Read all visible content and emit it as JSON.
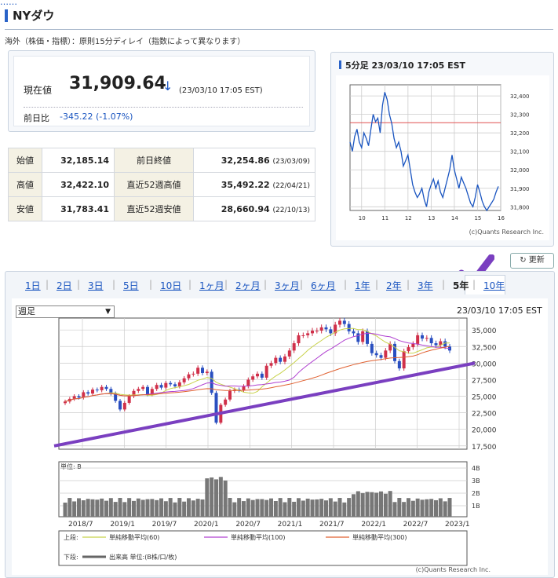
{
  "page": {
    "title": "NYダウ",
    "notice": "海外（株価・指標）：原則15分ディレイ（指数によって異なります）"
  },
  "quote": {
    "now_label": "現在値",
    "price": "31,909.64",
    "direction_icon": "down-arrow",
    "arrow": "↓",
    "timestamp": "(23/03/10 17:05 EST)",
    "prev_label": "前日比",
    "change": "-345.22 (-1.07%)"
  },
  "stats": {
    "rows": [
      {
        "l1": "始値",
        "v1": "32,185.14",
        "l2": "前日終値",
        "v2": "32,254.86",
        "d2": "(23/03/09)"
      },
      {
        "l1": "高値",
        "v1": "32,422.10",
        "l2": "直近52週高値",
        "v2": "35,492.22",
        "d2": "(22/04/21)"
      },
      {
        "l1": "安値",
        "v1": "31,783.41",
        "l2": "直近52週安値",
        "v2": "28,660.94",
        "d2": "(22/10/13)"
      }
    ]
  },
  "mini_chart": {
    "title": "5分足 23/03/10 17:05 EST",
    "credit": "(c)Quants Research Inc.",
    "ref_line_value": 32254.86,
    "ref_color": "#e05050",
    "line_color": "#1a55c0"
  },
  "toolbar": {
    "refresh_label": "更新",
    "refresh_icon": "refresh-icon"
  },
  "tabs": {
    "items": [
      "1日",
      "2日",
      "3日",
      "5日",
      "10日",
      "1ヶ月",
      "2ヶ月",
      "3ヶ月",
      "6ヶ月",
      "1年",
      "2年",
      "3年",
      "5年",
      "10年"
    ],
    "active": "5年"
  },
  "main_chart": {
    "select_value": "週足",
    "timestamp": "23/03/10 17:05 EST",
    "vol_unit": "単位: B",
    "legend_upper_label": "上段:",
    "legend_lower_label": "下段:",
    "legend": [
      {
        "label": "単純移動平均(60)",
        "color": "#c8d24a"
      },
      {
        "label": "単純移動平均(100)",
        "color": "#b040d0"
      },
      {
        "label": "単純移動平均(300)",
        "color": "#e06030"
      }
    ],
    "legend_volume": "出来高 単位:(B株/口/枚)",
    "credit": "(c)Quants Research Inc."
  },
  "chart_data": [
    {
      "type": "line",
      "title": "5分足 23/03/10 17:05 EST",
      "x_ticks": [
        "10",
        "11",
        "12",
        "13",
        "14",
        "15",
        "16"
      ],
      "y_ticks": [
        32400,
        32300,
        32200,
        32100,
        32000,
        31900,
        31800
      ],
      "ylim": [
        31780,
        32460
      ],
      "xlim": [
        9.5,
        16.0
      ],
      "series": [
        {
          "x": [
            9.5,
            9.6,
            9.7,
            9.8,
            9.9,
            10.0,
            10.1,
            10.2,
            10.3,
            10.4,
            10.5,
            10.6,
            10.7,
            10.8,
            10.9,
            11.0,
            11.1,
            11.2,
            11.3,
            11.4,
            11.5,
            11.6,
            11.7,
            11.8,
            11.9,
            12.0,
            12.1,
            12.2,
            12.3,
            12.4,
            12.5,
            12.6,
            12.7,
            12.8,
            12.9,
            13.0,
            13.1,
            13.2,
            13.3,
            13.4,
            13.5,
            13.6,
            13.7,
            13.8,
            13.9,
            14.0,
            14.1,
            14.2,
            14.3,
            14.4,
            14.5,
            14.6,
            14.7,
            14.8,
            14.9,
            15.0,
            15.1,
            15.2,
            15.3,
            15.4,
            15.5,
            15.6,
            15.7,
            15.8,
            15.9
          ],
          "y": [
            32150,
            32100,
            32180,
            32220,
            32150,
            32120,
            32200,
            32170,
            32130,
            32220,
            32300,
            32260,
            32280,
            32200,
            32350,
            32420,
            32380,
            32300,
            32250,
            32170,
            32120,
            32150,
            32100,
            32020,
            32050,
            32080,
            32000,
            31920,
            31880,
            31850,
            31870,
            31900,
            31840,
            31800,
            31880,
            31920,
            31950,
            31900,
            31940,
            31880,
            31850,
            31900,
            31950,
            32000,
            32080,
            32000,
            31950,
            31900,
            31960,
            31930,
            31900,
            31860,
            31820,
            31800,
            31850,
            31920,
            31880,
            31830,
            31800,
            31780,
            31800,
            31820,
            31840,
            31880,
            31910
          ]
        }
      ],
      "reference_line": 32254.86
    },
    {
      "type": "candlestick",
      "title": "",
      "x_ticks": [
        "2018/7",
        "2019/1",
        "2019/7",
        "2020/1",
        "2020/7",
        "2021/1",
        "2021/7",
        "2022/1",
        "2022/7",
        "2023/1"
      ],
      "y_ticks": [
        35000,
        32500,
        30000,
        27500,
        25000,
        22500,
        20000,
        17500
      ],
      "ylim": [
        17000,
        36800
      ],
      "close_series": [
        24200,
        24600,
        25000,
        24800,
        25600,
        25400,
        26000,
        25900,
        26400,
        26100,
        25400,
        24300,
        23000,
        24000,
        25000,
        25800,
        26100,
        26400,
        25300,
        26100,
        26700,
        26300,
        27000,
        26800,
        26500,
        27100,
        27700,
        28300,
        28400,
        29300,
        28500,
        28700,
        25500,
        21000,
        23700,
        24500,
        25800,
        26000,
        25900,
        26500,
        27500,
        28000,
        28400,
        27800,
        29600,
        30000,
        30800,
        30200,
        31000,
        31900,
        33000,
        34200,
        34200,
        34500,
        34900,
        34900,
        35400,
        35100,
        34500,
        35800,
        36400,
        35900,
        34800,
        34500,
        33200,
        34800,
        32900,
        31500,
        31200,
        30800,
        31900,
        32900,
        30300,
        29200,
        31800,
        32400,
        32900,
        34200,
        33700,
        33800,
        33000,
        32700,
        33300,
        32500,
        31900
      ]
    }
  ]
}
